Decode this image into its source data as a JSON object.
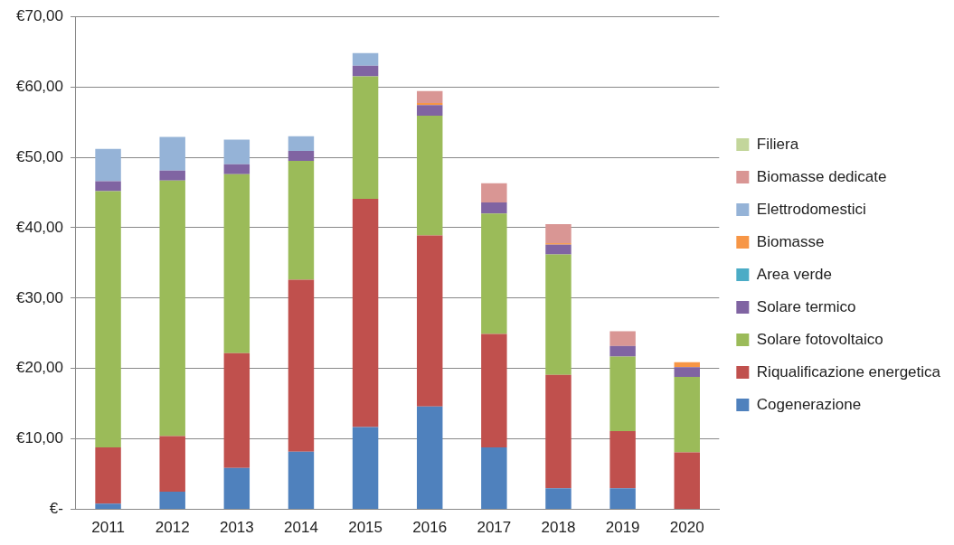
{
  "chart_data": {
    "type": "bar",
    "stacked": true,
    "categories": [
      "2011",
      "2012",
      "2013",
      "2014",
      "2015",
      "2016",
      "2017",
      "2018",
      "2019",
      "2020"
    ],
    "series": [
      {
        "name": "Cogenerazione",
        "color": "#4f81bd",
        "values": [
          0.8,
          2.5,
          5.9,
          8.2,
          11.7,
          14.6,
          8.8,
          3.0,
          3.0,
          0
        ]
      },
      {
        "name": "Riqualificazione energetica",
        "color": "#c0504d",
        "values": [
          8.0,
          7.9,
          16.3,
          24.4,
          32.4,
          24.3,
          16.1,
          16.1,
          8.1,
          8.1
        ]
      },
      {
        "name": "Solare fotovoltaico",
        "color": "#9bbb59",
        "values": [
          36.4,
          36.3,
          25.4,
          16.9,
          17.4,
          17.0,
          17.1,
          17.1,
          10.6,
          10.7
        ]
      },
      {
        "name": "Solare termico",
        "color": "#8064a2",
        "values": [
          1.4,
          1.4,
          1.4,
          1.4,
          1.5,
          1.5,
          1.6,
          1.4,
          1.5,
          1.4
        ]
      },
      {
        "name": "Area verde",
        "color": "#4bacc6",
        "values": [
          0,
          0,
          0,
          0,
          0,
          0,
          0,
          0,
          0,
          0
        ]
      },
      {
        "name": "Biomasse",
        "color": "#f79646",
        "values": [
          0,
          0,
          0,
          0,
          0,
          0.3,
          0,
          0.2,
          0,
          0.7
        ]
      },
      {
        "name": "Elettrodomestici",
        "color": "#95b3d7",
        "values": [
          4.6,
          4.8,
          3.5,
          2.1,
          1.8,
          0,
          0,
          0,
          0,
          0
        ]
      },
      {
        "name": "Biomasse dedicate",
        "color": "#d99694",
        "values": [
          0,
          0,
          0,
          0,
          0,
          1.7,
          2.7,
          2.7,
          2.1,
          0
        ]
      },
      {
        "name": "Filiera",
        "color": "#c3d69b",
        "values": [
          0,
          0,
          0,
          0,
          0,
          0,
          0,
          0,
          0,
          0
        ]
      }
    ],
    "ylim": [
      0,
      70
    ],
    "yticks": [
      {
        "value": 0,
        "label": "€-"
      },
      {
        "value": 10,
        "label": "€10,00"
      },
      {
        "value": 20,
        "label": "€20,00"
      },
      {
        "value": 30,
        "label": "€30,00"
      },
      {
        "value": 40,
        "label": "€40,00"
      },
      {
        "value": 50,
        "label": "€50,00"
      },
      {
        "value": 60,
        "label": "€60,00"
      },
      {
        "value": 70,
        "label": "€70,00"
      }
    ],
    "grid": "y",
    "legend": "right"
  }
}
